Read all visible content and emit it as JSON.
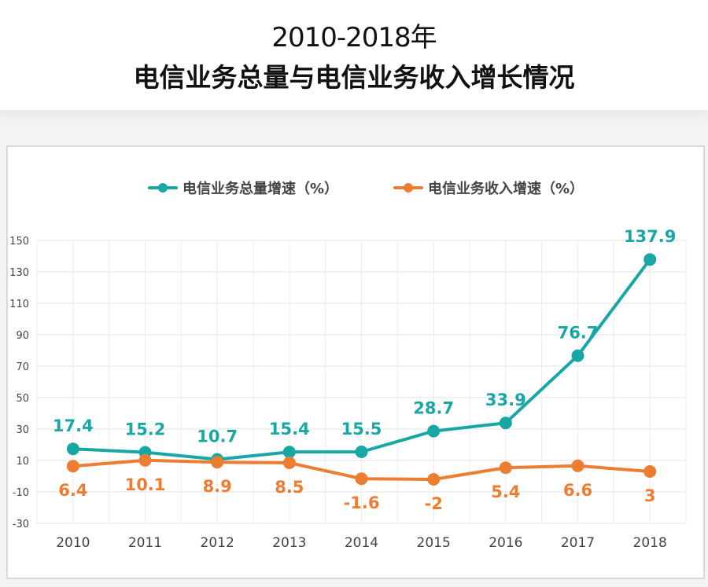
{
  "header": {
    "title_line1": "2010-2018年",
    "title_line2": "电信业务总量与电信业务收入增长情况"
  },
  "chart_data": {
    "type": "line",
    "title": "2010-2018年 电信业务总量与电信业务收入增长情况",
    "categories": [
      "2010",
      "2011",
      "2012",
      "2013",
      "2014",
      "2015",
      "2016",
      "2017",
      "2018"
    ],
    "series": [
      {
        "name": "电信业务总量增速（%）",
        "color": "#17a8a6",
        "values": [
          17.4,
          15.2,
          10.7,
          15.4,
          15.5,
          28.7,
          33.9,
          76.7,
          137.9
        ]
      },
      {
        "name": "电信业务收入增速（%）",
        "color": "#ed7d31",
        "values": [
          6.4,
          10.1,
          8.9,
          8.5,
          -1.6,
          -2,
          5.4,
          6.6,
          3
        ]
      }
    ],
    "ylim": [
      -30,
      150
    ],
    "yticks": [
      150,
      130,
      110,
      90,
      70,
      50,
      30,
      10,
      -10,
      -30
    ],
    "grid": true,
    "legend": "top"
  }
}
